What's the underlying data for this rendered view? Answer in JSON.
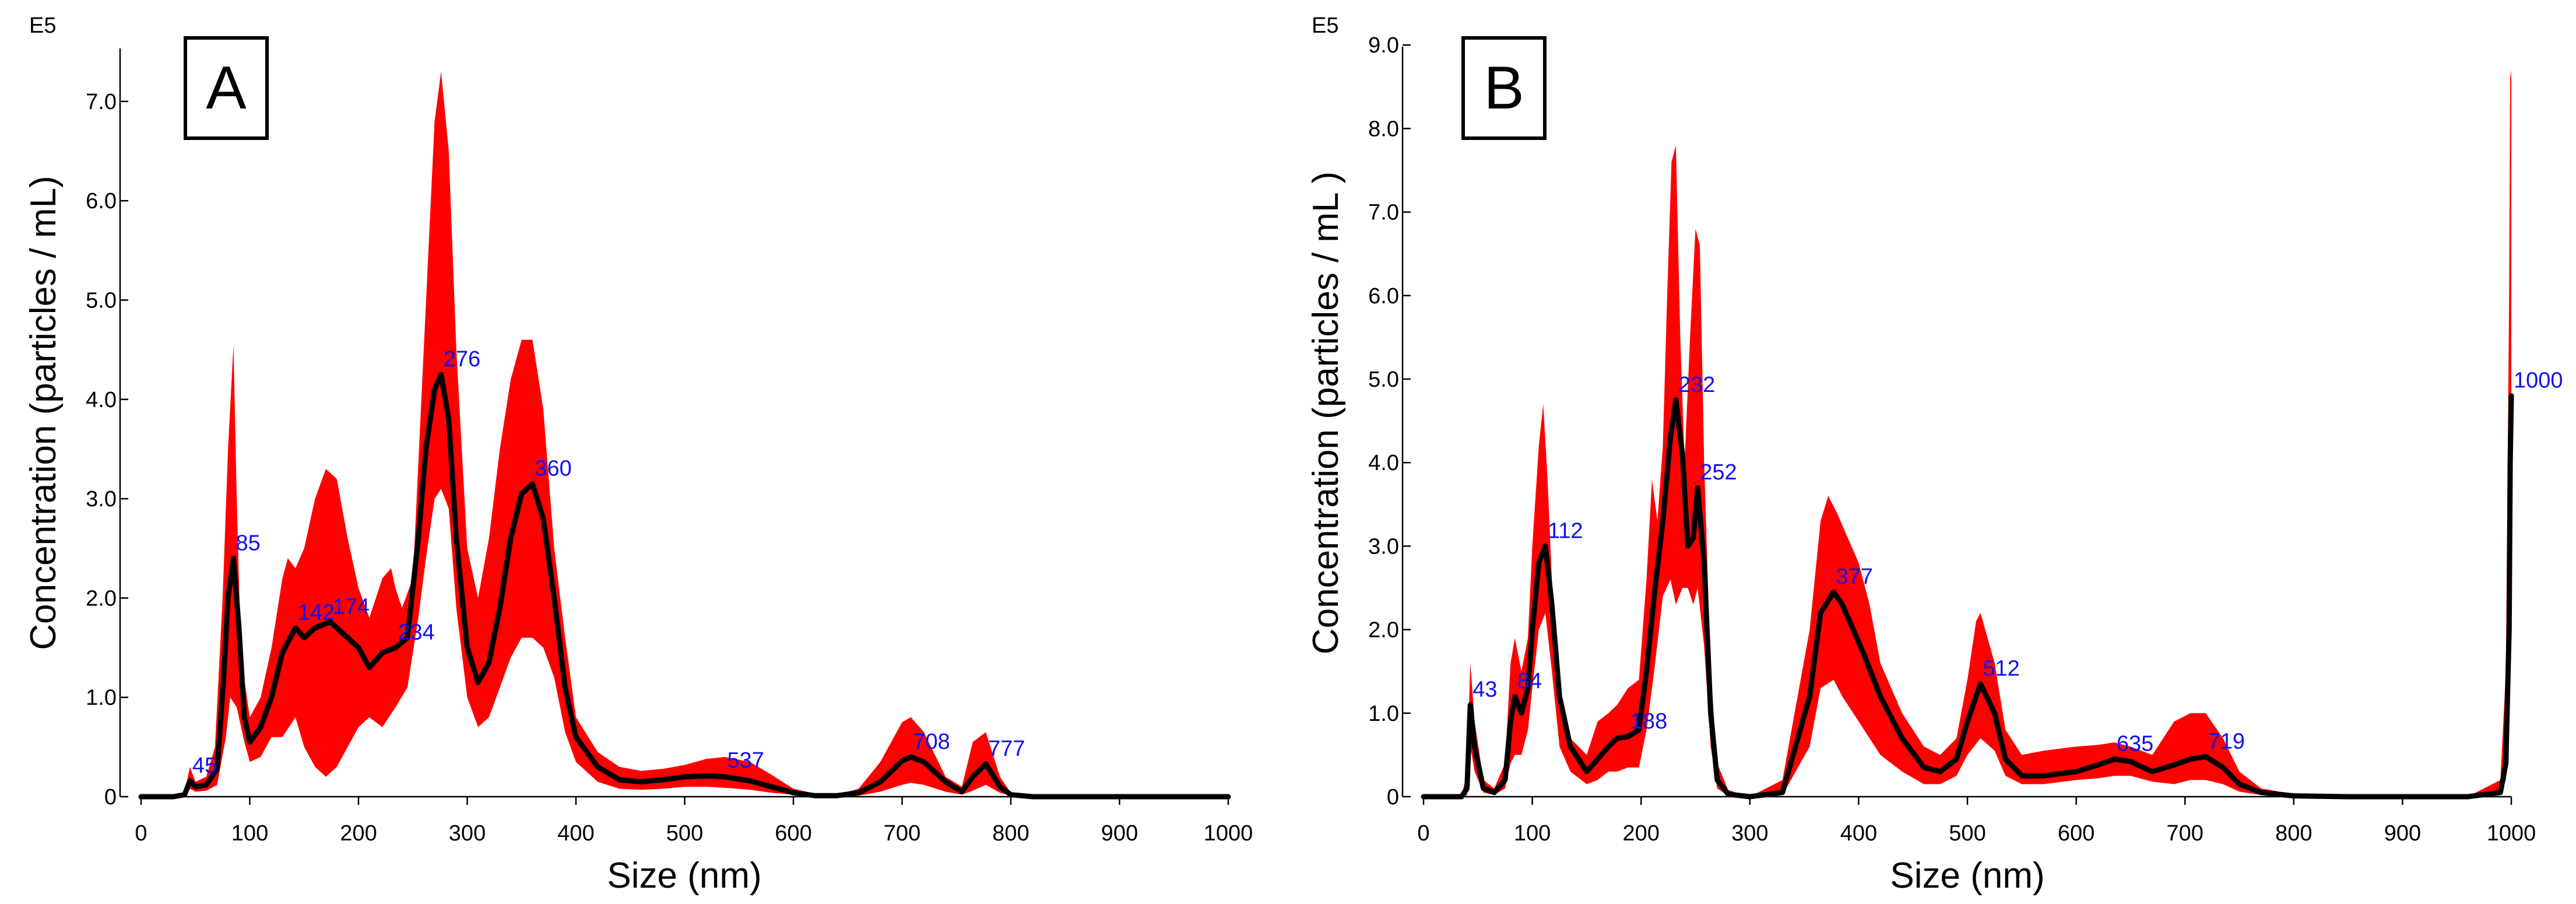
{
  "colors": {
    "band": "#ff0000",
    "mean": "#000000",
    "peak_label": "#1010ee"
  },
  "chart_data": [
    {
      "type": "area",
      "panel": "A",
      "scale_label": "E5",
      "xlabel": "Size (nm)",
      "ylabel": "Concentration (particles / mL)",
      "xlim": [
        0,
        1000
      ],
      "ylim": [
        0,
        7.8
      ],
      "x_ticks": [
        0,
        100,
        200,
        300,
        400,
        500,
        600,
        700,
        800,
        900,
        1000
      ],
      "y_ticks": [
        0,
        1,
        2,
        3,
        4,
        5,
        6,
        7
      ],
      "y_tick_labels": [
        "0",
        "1.0",
        "2.0",
        "3.0",
        "4.0",
        "5.0",
        "6.0",
        "7.0"
      ],
      "series": [
        {
          "kind": "mean",
          "x": [
            0,
            30,
            40,
            45,
            50,
            60,
            70,
            76,
            80,
            85,
            90,
            95,
            100,
            110,
            120,
            130,
            142,
            150,
            160,
            174,
            185,
            200,
            210,
            222,
            234,
            245,
            255,
            262,
            270,
            276,
            283,
            290,
            300,
            310,
            320,
            330,
            340,
            350,
            360,
            370,
            380,
            390,
            400,
            420,
            440,
            460,
            480,
            500,
            520,
            537,
            560,
            580,
            600,
            620,
            640,
            660,
            680,
            700,
            708,
            720,
            740,
            755,
            765,
            777,
            790,
            800,
            820,
            850,
            1000
          ],
          "y": [
            0,
            0,
            0.02,
            0.16,
            0.1,
            0.12,
            0.28,
            1.2,
            2.0,
            2.4,
            1.7,
            0.8,
            0.55,
            0.7,
            1.0,
            1.45,
            1.7,
            1.6,
            1.7,
            1.76,
            1.65,
            1.5,
            1.3,
            1.45,
            1.5,
            1.6,
            2.6,
            3.5,
            4.1,
            4.25,
            3.8,
            2.6,
            1.5,
            1.15,
            1.35,
            1.9,
            2.6,
            3.05,
            3.15,
            2.8,
            2.0,
            1.1,
            0.6,
            0.3,
            0.17,
            0.15,
            0.17,
            0.2,
            0.21,
            0.2,
            0.16,
            0.1,
            0.04,
            0.01,
            0.01,
            0.04,
            0.15,
            0.36,
            0.4,
            0.35,
            0.15,
            0.05,
            0.2,
            0.33,
            0.1,
            0.02,
            0,
            0,
            0
          ]
        },
        {
          "kind": "band_upper",
          "x": [
            0,
            30,
            40,
            45,
            50,
            60,
            68,
            75,
            80,
            85,
            88,
            92,
            100,
            110,
            120,
            130,
            135,
            142,
            150,
            160,
            170,
            180,
            190,
            200,
            210,
            222,
            230,
            234,
            240,
            250,
            260,
            270,
            276,
            283,
            290,
            300,
            310,
            320,
            330,
            340,
            350,
            360,
            370,
            380,
            390,
            400,
            420,
            440,
            460,
            480,
            500,
            520,
            537,
            560,
            580,
            600,
            620,
            640,
            660,
            680,
            700,
            708,
            720,
            740,
            755,
            765,
            777,
            790,
            800,
            820,
            850,
            1000
          ],
          "y": [
            0,
            0,
            0.05,
            0.3,
            0.15,
            0.2,
            0.5,
            2.0,
            3.5,
            4.55,
            3.0,
            1.4,
            0.8,
            1.0,
            1.5,
            2.2,
            2.4,
            2.3,
            2.5,
            3.0,
            3.3,
            3.2,
            2.6,
            2.1,
            1.8,
            2.2,
            2.3,
            2.1,
            1.9,
            2.2,
            4.5,
            6.8,
            7.3,
            6.5,
            4.5,
            2.5,
            2.0,
            2.6,
            3.5,
            4.2,
            4.6,
            4.6,
            3.9,
            2.5,
            1.6,
            0.8,
            0.45,
            0.3,
            0.26,
            0.28,
            0.32,
            0.38,
            0.4,
            0.35,
            0.22,
            0.08,
            0.03,
            0.02,
            0.08,
            0.35,
            0.75,
            0.8,
            0.65,
            0.2,
            0.1,
            0.55,
            0.65,
            0.2,
            0.04,
            0,
            0,
            0
          ]
        },
        {
          "kind": "band_lower",
          "x": [
            0,
            30,
            40,
            45,
            50,
            60,
            70,
            78,
            82,
            88,
            95,
            100,
            110,
            120,
            130,
            142,
            150,
            160,
            170,
            180,
            190,
            200,
            210,
            222,
            234,
            245,
            255,
            262,
            270,
            276,
            283,
            290,
            300,
            310,
            320,
            330,
            340,
            350,
            360,
            370,
            380,
            390,
            400,
            420,
            440,
            460,
            480,
            500,
            520,
            537,
            560,
            580,
            600,
            620,
            640,
            660,
            680,
            700,
            708,
            720,
            740,
            755,
            765,
            777,
            790,
            800,
            820,
            850,
            1000
          ],
          "y": [
            0,
            0,
            0.01,
            0.08,
            0.05,
            0.06,
            0.12,
            0.6,
            1.0,
            0.9,
            0.55,
            0.35,
            0.4,
            0.6,
            0.6,
            0.8,
            0.5,
            0.3,
            0.2,
            0.3,
            0.5,
            0.7,
            0.8,
            0.7,
            0.9,
            1.1,
            1.8,
            2.4,
            3.0,
            3.1,
            2.9,
            1.9,
            1.0,
            0.7,
            0.8,
            1.1,
            1.4,
            1.6,
            1.6,
            1.5,
            1.2,
            0.65,
            0.35,
            0.15,
            0.08,
            0.07,
            0.08,
            0.1,
            0.1,
            0.09,
            0.07,
            0.04,
            0.02,
            0,
            0,
            0.01,
            0.05,
            0.12,
            0.14,
            0.12,
            0.05,
            0.02,
            0.06,
            0.12,
            0.04,
            0.01,
            0,
            0,
            0
          ]
        }
      ],
      "peak_labels": [
        {
          "text": "45",
          "x": 45,
          "y": 0.16
        },
        {
          "text": "85",
          "x": 85,
          "y": 2.4
        },
        {
          "text": "142",
          "x": 142,
          "y": 1.7
        },
        {
          "text": "174",
          "x": 174,
          "y": 1.76
        },
        {
          "text": "234",
          "x": 234,
          "y": 1.5
        },
        {
          "text": "276",
          "x": 276,
          "y": 4.25
        },
        {
          "text": "360",
          "x": 360,
          "y": 3.15
        },
        {
          "text": "537",
          "x": 537,
          "y": 0.21
        },
        {
          "text": "708",
          "x": 708,
          "y": 0.4
        },
        {
          "text": "777",
          "x": 777,
          "y": 0.33
        }
      ]
    },
    {
      "type": "area",
      "panel": "B",
      "scale_label": "E5",
      "xlabel": "Size (nm)",
      "ylabel": "Concentration (particles / mL )",
      "xlim": [
        0,
        1000
      ],
      "ylim": [
        0,
        9.3
      ],
      "x_ticks": [
        0,
        100,
        200,
        300,
        400,
        500,
        600,
        700,
        800,
        900,
        1000
      ],
      "y_ticks": [
        0,
        1,
        2,
        3,
        4,
        5,
        6,
        7,
        8,
        9
      ],
      "y_tick_labels": [
        "0",
        "1.0",
        "2.0",
        "3.0",
        "4.0",
        "5.0",
        "6.0",
        "7.0",
        "8.0",
        "9.0"
      ],
      "series": [
        {
          "kind": "mean",
          "x": [
            0,
            35,
            40,
            43,
            47,
            55,
            65,
            75,
            80,
            84,
            90,
            96,
            100,
            106,
            112,
            118,
            125,
            135,
            150,
            160,
            170,
            178,
            188,
            198,
            205,
            212,
            220,
            227,
            232,
            238,
            243,
            248,
            252,
            258,
            264,
            270,
            280,
            300,
            330,
            355,
            365,
            377,
            385,
            395,
            405,
            420,
            440,
            460,
            475,
            490,
            500,
            512,
            525,
            535,
            550,
            570,
            600,
            620,
            635,
            650,
            670,
            690,
            705,
            719,
            735,
            750,
            770,
            800,
            850,
            960,
            990,
            995,
            998,
            999,
            1000
          ],
          "y": [
            0,
            0,
            0.1,
            1.1,
            0.6,
            0.1,
            0.05,
            0.2,
            0.9,
            1.2,
            1.0,
            1.3,
            2.0,
            2.8,
            3.0,
            2.3,
            1.2,
            0.6,
            0.3,
            0.45,
            0.6,
            0.7,
            0.72,
            0.8,
            1.5,
            2.4,
            3.3,
            4.3,
            4.75,
            4.1,
            3.0,
            3.1,
            3.7,
            2.8,
            1.0,
            0.2,
            0.03,
            0,
            0.05,
            1.2,
            2.2,
            2.45,
            2.3,
            2.0,
            1.7,
            1.2,
            0.7,
            0.35,
            0.3,
            0.45,
            0.9,
            1.35,
            1.0,
            0.45,
            0.25,
            0.25,
            0.3,
            0.38,
            0.45,
            0.42,
            0.3,
            0.38,
            0.45,
            0.48,
            0.35,
            0.15,
            0.05,
            0.01,
            0,
            0,
            0.05,
            0.4,
            2.0,
            4.0,
            4.8
          ]
        },
        {
          "kind": "band_upper",
          "x": [
            0,
            35,
            40,
            43,
            47,
            55,
            65,
            75,
            80,
            84,
            90,
            96,
            100,
            106,
            110,
            114,
            120,
            128,
            135,
            150,
            160,
            170,
            178,
            188,
            198,
            205,
            210,
            215,
            220,
            224,
            228,
            232,
            236,
            240,
            245,
            250,
            254,
            258,
            264,
            270,
            280,
            300,
            330,
            355,
            365,
            372,
            380,
            390,
            400,
            410,
            420,
            440,
            460,
            475,
            490,
            500,
            508,
            512,
            525,
            535,
            550,
            570,
            600,
            620,
            635,
            650,
            670,
            690,
            705,
            719,
            735,
            750,
            770,
            800,
            850,
            960,
            990,
            995,
            998,
            999,
            1000
          ],
          "y": [
            0,
            0,
            0.3,
            1.6,
            0.9,
            0.2,
            0.1,
            0.4,
            1.6,
            1.9,
            1.5,
            1.9,
            3.0,
            4.2,
            4.7,
            3.8,
            2.0,
            1.0,
            0.7,
            0.5,
            0.9,
            1.0,
            1.1,
            1.3,
            1.4,
            2.6,
            3.8,
            3.3,
            4.2,
            6.0,
            7.6,
            7.8,
            5.5,
            4.0,
            5.5,
            6.8,
            6.6,
            4.0,
            1.5,
            0.4,
            0.08,
            0,
            0.2,
            2.0,
            3.3,
            3.6,
            3.4,
            3.1,
            2.8,
            2.3,
            1.6,
            1.0,
            0.6,
            0.5,
            0.7,
            1.4,
            2.1,
            2.2,
            1.6,
            0.8,
            0.5,
            0.55,
            0.6,
            0.62,
            0.65,
            0.6,
            0.5,
            0.9,
            1.0,
            1.0,
            0.7,
            0.3,
            0.1,
            0.03,
            0,
            0,
            0.2,
            1.5,
            6.0,
            8.6,
            8.7
          ]
        },
        {
          "kind": "band_lower",
          "x": [
            0,
            35,
            40,
            43,
            47,
            55,
            65,
            75,
            80,
            84,
            90,
            96,
            100,
            106,
            112,
            118,
            125,
            135,
            150,
            160,
            170,
            178,
            188,
            198,
            205,
            212,
            220,
            227,
            232,
            238,
            243,
            248,
            252,
            258,
            264,
            270,
            280,
            300,
            330,
            355,
            365,
            377,
            385,
            395,
            405,
            420,
            440,
            460,
            475,
            490,
            500,
            512,
            525,
            535,
            550,
            570,
            600,
            620,
            635,
            650,
            670,
            690,
            705,
            719,
            735,
            750,
            770,
            800,
            850,
            960,
            990,
            995,
            998,
            999,
            1000
          ],
          "y": [
            0,
            0,
            0.02,
            0.6,
            0.3,
            0.05,
            0.02,
            0.1,
            0.4,
            0.5,
            0.5,
            0.8,
            1.3,
            2.0,
            2.2,
            1.5,
            0.6,
            0.3,
            0.15,
            0.2,
            0.3,
            0.3,
            0.35,
            0.35,
            0.8,
            1.5,
            2.4,
            2.6,
            2.3,
            2.5,
            2.5,
            2.3,
            2.5,
            1.8,
            0.6,
            0.1,
            0.01,
            0,
            0.02,
            0.6,
            1.3,
            1.4,
            1.2,
            1.0,
            0.8,
            0.5,
            0.3,
            0.15,
            0.15,
            0.25,
            0.5,
            0.7,
            0.55,
            0.25,
            0.15,
            0.15,
            0.2,
            0.22,
            0.25,
            0.25,
            0.18,
            0.15,
            0.2,
            0.2,
            0.15,
            0.06,
            0.02,
            0,
            0,
            0,
            0.02,
            0.2,
            1.0,
            2.5,
            3.0
          ]
        }
      ],
      "peak_labels": [
        {
          "text": "43",
          "x": 43,
          "y": 1.1
        },
        {
          "text": "84",
          "x": 84,
          "y": 1.2
        },
        {
          "text": "112",
          "x": 112,
          "y": 3.0
        },
        {
          "text": "188",
          "x": 188,
          "y": 0.72
        },
        {
          "text": "232",
          "x": 232,
          "y": 4.75
        },
        {
          "text": "252",
          "x": 252,
          "y": 3.7
        },
        {
          "text": "377",
          "x": 377,
          "y": 2.45
        },
        {
          "text": "512",
          "x": 512,
          "y": 1.35
        },
        {
          "text": "635",
          "x": 635,
          "y": 0.45
        },
        {
          "text": "719",
          "x": 719,
          "y": 0.48
        },
        {
          "text": "1000",
          "x": 1000,
          "y": 4.8
        }
      ]
    }
  ]
}
